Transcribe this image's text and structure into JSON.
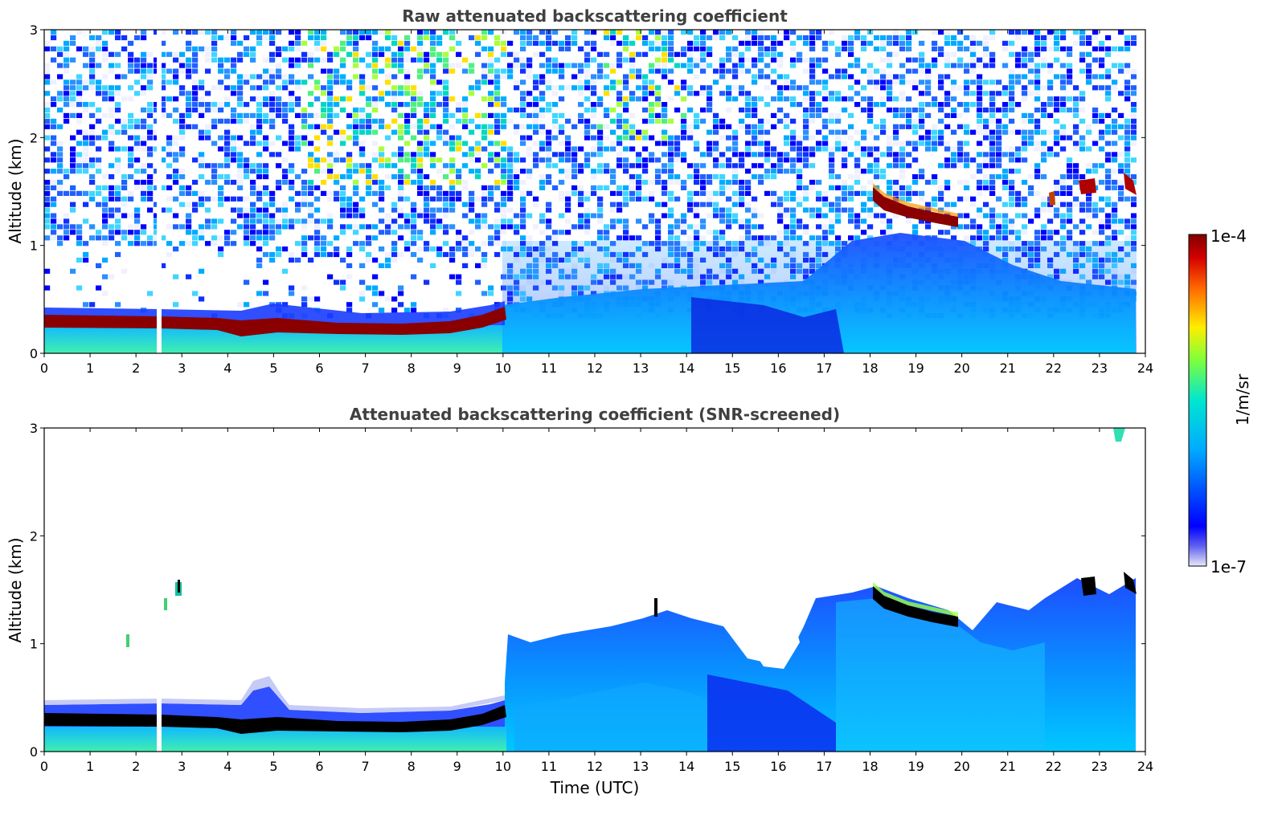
{
  "chart_data": [
    {
      "type": "heatmap",
      "title": "Raw attenuated backscattering coefficient",
      "xlabel": "",
      "ylabel": "Altitude (km)",
      "xlim": [
        0,
        24
      ],
      "ylim": [
        0,
        3
      ],
      "x_ticks": [
        "0",
        "1",
        "2",
        "3",
        "4",
        "5",
        "6",
        "7",
        "8",
        "9",
        "10",
        "11",
        "12",
        "13",
        "14",
        "15",
        "16",
        "17",
        "18",
        "19",
        "20",
        "21",
        "22",
        "23",
        "24"
      ],
      "y_ticks": [
        "0",
        "1",
        "2",
        "3"
      ],
      "features": [
        {
          "kind": "cloud-base layer (dense)",
          "x": [
            0,
            10.2
          ],
          "altitude_km": [
            0.22,
            0.38
          ],
          "level": "1e-4"
        },
        {
          "kind": "elevated layer (dense)",
          "x": [
            18.0,
            19.9
          ],
          "altitude_km": [
            1.55,
            1.2
          ],
          "level": "1e-4"
        },
        {
          "kind": "boundary-layer aerosol",
          "x": [
            10.2,
            23.8
          ],
          "altitude_km": [
            0,
            0.8
          ],
          "level": "~1e-6"
        },
        {
          "kind": "noise (sparse)",
          "x": [
            0,
            23.8
          ],
          "altitude_km": [
            0.4,
            3.0
          ],
          "level": "1e-7 to 1e-5"
        },
        {
          "kind": "data gap",
          "x": [
            2.45,
            2.58
          ],
          "altitude_km": [
            0,
            3.0
          ]
        }
      ]
    },
    {
      "type": "heatmap",
      "title": "Attenuated backscattering coefficient (SNR-screened)",
      "xlabel": "Time (UTC)",
      "ylabel": "Altitude (km)",
      "xlim": [
        0,
        24
      ],
      "ylim": [
        0,
        3
      ],
      "x_ticks": [
        "0",
        "1",
        "2",
        "3",
        "4",
        "5",
        "6",
        "7",
        "8",
        "9",
        "10",
        "11",
        "12",
        "13",
        "14",
        "15",
        "16",
        "17",
        "18",
        "19",
        "20",
        "21",
        "22",
        "23",
        "24"
      ],
      "y_ticks": [
        "0",
        "1",
        "2",
        "3"
      ],
      "features": [
        {
          "kind": "cloud-base layer (saturated)",
          "x": [
            0,
            10.2
          ],
          "altitude_km": [
            0.22,
            0.38
          ],
          "level": ">1e-4"
        },
        {
          "kind": "elevated layer (saturated)",
          "x": [
            18.0,
            19.9
          ],
          "altitude_km": [
            1.55,
            1.2
          ],
          "level": ">1e-4"
        },
        {
          "kind": "boundary-layer aerosol",
          "x": [
            10.2,
            23.8
          ],
          "altitude_km": [
            0,
            1.5
          ],
          "level": "~1e-6"
        },
        {
          "kind": "data gap",
          "x": [
            2.45,
            2.58
          ],
          "altitude_km": [
            0,
            0.5
          ]
        }
      ]
    }
  ],
  "colorbar": {
    "label": "1/m/sr",
    "max_label": "1e-4",
    "min_label": "1e-7",
    "scale": "log",
    "colormap": [
      "#e8e8f8",
      "#0000ff",
      "#00aaff",
      "#00ffcc",
      "#aaff00",
      "#ffee00",
      "#ff6600",
      "#d40000",
      "#800000"
    ]
  }
}
